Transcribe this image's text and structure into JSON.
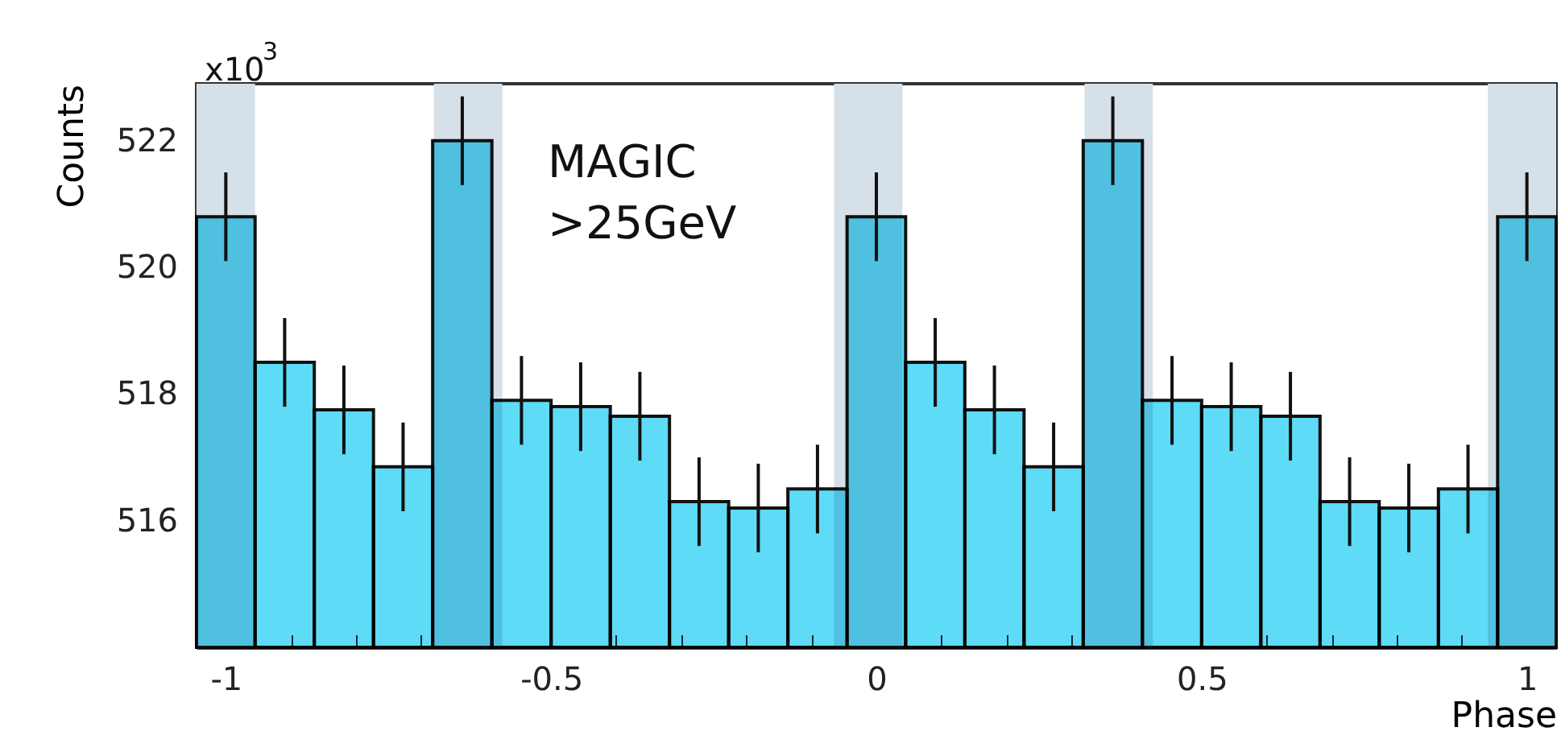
{
  "chart_data": {
    "type": "histogram",
    "xlabel": "Phase",
    "ylabel": "Counts",
    "annotations": [
      "x10$^{3}$",
      "MAGIC",
      ">25GeV"
    ],
    "bins": [
      -1.045,
      -0.955,
      -0.864,
      -0.773,
      -0.682,
      -0.591,
      -0.5,
      -0.409,
      -0.318,
      -0.227,
      -0.136,
      -0.045,
      0.045,
      0.136,
      0.227,
      0.318,
      0.409,
      0.5,
      0.591,
      0.682,
      0.773,
      0.864,
      0.955,
      1.045
    ],
    "values": [
      520.8,
      518.5,
      517.75,
      516.85,
      522,
      517.9,
      517.8,
      517.65,
      516.3,
      516.2,
      516.5,
      520.8,
      518.5,
      517.75,
      516.85,
      522,
      517.9,
      517.8,
      517.65,
      516.3,
      516.2,
      516.5,
      520.8
    ],
    "errors": [
      0.7,
      0.7,
      0.7,
      0.7,
      0.7,
      0.7,
      0.7,
      0.7,
      0.7,
      0.7,
      0.7,
      0.7,
      0.7,
      0.7,
      0.7,
      0.7,
      0.7,
      0.7,
      0.7,
      0.7,
      0.7,
      0.7,
      0.7
    ],
    "color": "#5edbf6",
    "bands": [
      {
        "axis": "x",
        "from": -1.045,
        "to": -0.955,
        "color": "#d6e0e8"
      },
      {
        "axis": "x",
        "from": -0.68,
        "to": -0.575,
        "color": "#d6e0e8"
      },
      {
        "axis": "x",
        "from": -0.065,
        "to": 0.04,
        "color": "#d6e0e8"
      },
      {
        "axis": "x",
        "from": 0.32,
        "to": 0.425,
        "color": "#d6e0e8"
      },
      {
        "axis": "x",
        "from": 0.94,
        "to": 1.045,
        "color": "#d6e0e8"
      }
    ],
    "xlim": [
      -1.045,
      1.045
    ],
    "xticks": [
      -1,
      {
        "value": -0.9,
        "label": null
      },
      {
        "value": -0.8,
        "label": null
      },
      {
        "value": -0.7,
        "label": null
      },
      {
        "value": -0.6,
        "label": null
      },
      -0.5,
      {
        "value": -0.4,
        "label": null
      },
      {
        "value": -0.3,
        "label": null
      },
      {
        "value": -0.2,
        "label": null
      },
      {
        "value": -0.1,
        "label": null
      },
      0,
      {
        "value": 0.1,
        "label": null
      },
      {
        "value": 0.2,
        "label": null
      },
      {
        "value": 0.3,
        "label": null
      },
      {
        "value": 0.4,
        "label": null
      },
      0.5,
      {
        "value": 0.6,
        "label": null
      },
      {
        "value": 0.7,
        "label": null
      },
      {
        "value": 0.8,
        "label": null
      },
      {
        "value": 0.9,
        "label": null
      },
      1
    ],
    "ylim": [
      514,
      522.9
    ],
    "yticks": [
      516,
      518,
      520,
      522
    ],
    "grid": false
  }
}
